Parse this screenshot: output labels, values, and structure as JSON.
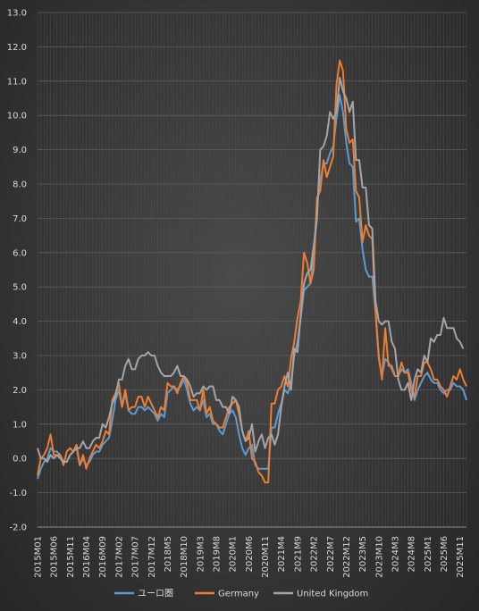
{
  "chart_data": {
    "type": "line",
    "title": "",
    "xlabel": "",
    "ylabel": "",
    "ylim": [
      -2.0,
      13.0
    ],
    "yticks": [
      "-2.0",
      "-1.0",
      "0.0",
      "1.0",
      "2.0",
      "3.0",
      "4.0",
      "5.0",
      "6.0",
      "7.0",
      "8.0",
      "9.0",
      "10.0",
      "11.0",
      "12.0",
      "13.0"
    ],
    "grid": true,
    "legend_position": "bottom",
    "x_start": "2015M01",
    "x_end": "2025M12",
    "xtick_labels": [
      {
        "label": "2015M01",
        "month_index": 0
      },
      {
        "label": "2015M06",
        "month_index": 5
      },
      {
        "label": "2015M11",
        "month_index": 10
      },
      {
        "label": "2016M04",
        "month_index": 15
      },
      {
        "label": "2016M09",
        "month_index": 20
      },
      {
        "label": "2017M02",
        "month_index": 25
      },
      {
        "label": "2017M07",
        "month_index": 30
      },
      {
        "label": "2017M12",
        "month_index": 35
      },
      {
        "label": "2018M5",
        "month_index": 40
      },
      {
        "label": "2018M10",
        "month_index": 45
      },
      {
        "label": "2019M3",
        "month_index": 50
      },
      {
        "label": "2019M8",
        "month_index": 55
      },
      {
        "label": "2020M1",
        "month_index": 60
      },
      {
        "label": "2020M6",
        "month_index": 65
      },
      {
        "label": "2020M11",
        "month_index": 70
      },
      {
        "label": "2021M4",
        "month_index": 75
      },
      {
        "label": "2021M9",
        "month_index": 80
      },
      {
        "label": "2022M2",
        "month_index": 85
      },
      {
        "label": "2022M7",
        "month_index": 90
      },
      {
        "label": "2022M12",
        "month_index": 95
      },
      {
        "label": "2023M5",
        "month_index": 100
      },
      {
        "label": "2023M10",
        "month_index": 105
      },
      {
        "label": "2024M3",
        "month_index": 110
      },
      {
        "label": "2024M8",
        "month_index": 115
      },
      {
        "label": "2025M1",
        "month_index": 120
      },
      {
        "label": "2025M6",
        "month_index": 125
      },
      {
        "label": "2025M11",
        "month_index": 130
      }
    ],
    "series": [
      {
        "name": "ユーロ圏",
        "color": "#5b9bd5",
        "values": [
          -0.6,
          -0.3,
          -0.1,
          0.0,
          0.3,
          0.2,
          0.2,
          0.1,
          -0.1,
          -0.1,
          0.1,
          0.2,
          0.3,
          -0.2,
          0.0,
          -0.2,
          -0.1,
          0.1,
          0.2,
          0.2,
          0.4,
          0.5,
          0.6,
          1.1,
          1.7,
          2.0,
          1.5,
          1.9,
          1.4,
          1.3,
          1.3,
          1.5,
          1.5,
          1.4,
          1.5,
          1.4,
          1.3,
          1.1,
          1.3,
          1.2,
          1.9,
          2.0,
          2.1,
          2.0,
          2.1,
          2.3,
          2.0,
          1.6,
          1.4,
          1.5,
          1.4,
          1.7,
          1.2,
          1.3,
          1.0,
          1.0,
          0.8,
          0.7,
          1.0,
          1.3,
          1.4,
          1.2,
          0.7,
          0.3,
          0.1,
          0.3,
          0.4,
          -0.2,
          -0.3,
          -0.3,
          -0.3,
          -0.3,
          0.9,
          0.9,
          1.3,
          1.6,
          2.0,
          1.9,
          2.2,
          3.0,
          3.4,
          4.1,
          4.9,
          5.0,
          5.1,
          5.9,
          7.4,
          8.1,
          8.6,
          8.6,
          8.9,
          9.1,
          9.9,
          10.6,
          10.1,
          9.2,
          8.6,
          8.5,
          6.9,
          7.0,
          6.1,
          5.5,
          5.3,
          5.3,
          4.3,
          2.9,
          2.4,
          2.9,
          2.8,
          2.6,
          2.4,
          2.4,
          2.6,
          2.5,
          2.6,
          2.2,
          1.7,
          2.0,
          2.2,
          2.4,
          2.5,
          2.3,
          2.2,
          2.2,
          2.0,
          1.9,
          2.0,
          2.0,
          2.2,
          2.1,
          2.1,
          2.0,
          1.7
        ],
        "width": 2
      },
      {
        "name": "Germany",
        "color": "#ed7d31",
        "values": [
          -0.5,
          0.0,
          0.1,
          0.3,
          0.7,
          0.1,
          0.1,
          0.1,
          -0.2,
          0.2,
          0.3,
          0.2,
          0.4,
          -0.2,
          0.1,
          -0.3,
          0.0,
          0.2,
          0.4,
          0.3,
          0.5,
          0.8,
          0.7,
          1.7,
          1.9,
          2.2,
          1.5,
          2.0,
          1.4,
          1.5,
          1.5,
          1.8,
          1.8,
          1.5,
          1.8,
          1.6,
          1.4,
          1.2,
          1.5,
          1.4,
          2.2,
          2.1,
          2.1,
          1.9,
          2.2,
          2.4,
          2.2,
          1.7,
          1.7,
          1.7,
          1.4,
          2.0,
          1.3,
          1.5,
          1.1,
          1.0,
          0.9,
          0.9,
          1.2,
          1.5,
          1.6,
          1.7,
          1.3,
          0.8,
          0.5,
          0.8,
          0.0,
          -0.1,
          -0.4,
          -0.5,
          -0.7,
          -0.7,
          1.6,
          1.6,
          2.0,
          2.1,
          2.4,
          2.1,
          2.9,
          3.4,
          4.1,
          4.6,
          6.0,
          5.7,
          5.1,
          5.5,
          7.6,
          7.8,
          8.7,
          8.2,
          8.5,
          8.8,
          10.9,
          11.6,
          11.3,
          9.6,
          9.2,
          9.3,
          7.8,
          7.6,
          6.3,
          6.8,
          6.5,
          6.4,
          4.3,
          3.0,
          2.3,
          3.8,
          2.7,
          2.7,
          2.4,
          2.4,
          2.8,
          2.5,
          2.5,
          2.0,
          1.8,
          2.4,
          2.4,
          2.8,
          2.8,
          2.6,
          2.3,
          2.3,
          2.1,
          2.0,
          1.8,
          2.1,
          2.4,
          2.3,
          2.6,
          2.3,
          2.1
        ],
        "width": 2
      },
      {
        "name": "United Kingdom",
        "color": "#a5a5a5",
        "values": [
          0.3,
          0.0,
          0.0,
          -0.1,
          0.1,
          0.0,
          0.1,
          0.0,
          -0.1,
          -0.1,
          0.1,
          0.2,
          0.3,
          0.3,
          0.5,
          0.3,
          0.3,
          0.5,
          0.6,
          0.6,
          1.0,
          0.9,
          1.2,
          1.6,
          1.8,
          2.3,
          2.3,
          2.7,
          2.9,
          2.6,
          2.6,
          2.9,
          3.0,
          3.0,
          3.1,
          3.0,
          3.0,
          2.7,
          2.5,
          2.4,
          2.4,
          2.4,
          2.5,
          2.7,
          2.4,
          2.4,
          2.3,
          2.1,
          1.8,
          1.9,
          1.9,
          2.1,
          2.0,
          2.1,
          2.1,
          1.7,
          1.7,
          1.5,
          1.5,
          1.3,
          1.8,
          1.7,
          1.5,
          0.8,
          0.5,
          0.6,
          1.0,
          0.2,
          0.5,
          0.7,
          0.3,
          0.6,
          0.7,
          0.4,
          0.7,
          1.5,
          2.1,
          2.5,
          2.0,
          3.2,
          3.1,
          4.2,
          5.1,
          5.4,
          5.5,
          6.2,
          7.0,
          9.0,
          9.1,
          9.4,
          10.1,
          9.9,
          10.1,
          11.1,
          10.7,
          10.5,
          10.1,
          10.4,
          8.7,
          8.7,
          7.9,
          7.9,
          6.8,
          6.7,
          4.6,
          4.0,
          3.9,
          4.0,
          4.0,
          3.4,
          3.2,
          2.3,
          2.0,
          2.0,
          2.2,
          1.7,
          2.3,
          2.6,
          2.5,
          3.0,
          2.8,
          3.5,
          3.4,
          3.6,
          3.6,
          4.1,
          3.8,
          3.8,
          3.8,
          3.5,
          3.4,
          3.2
        ],
        "width": 2
      }
    ]
  }
}
